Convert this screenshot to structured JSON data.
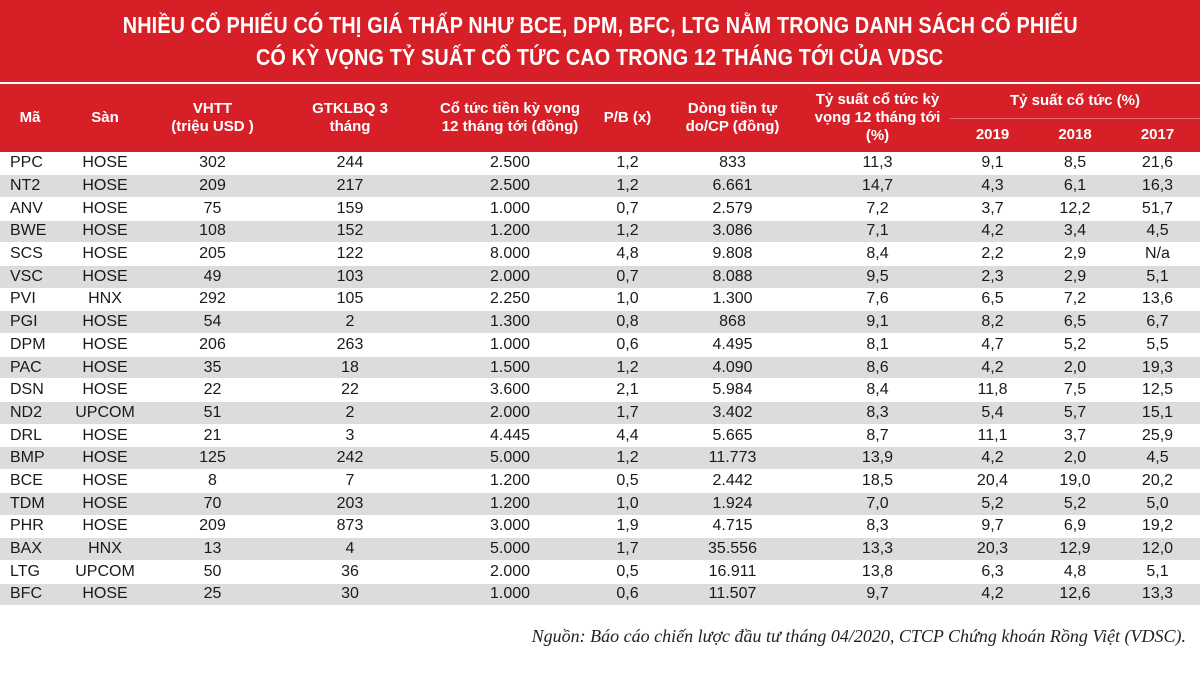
{
  "title": {
    "line1": "NHIỀU CỔ PHIẾU CÓ THỊ GIÁ THẤP NHƯ BCE, DPM, BFC, LTG NẰM TRONG DANH SÁCH CỔ PHIẾU",
    "line2": "CÓ KỲ VỌNG TỶ SUẤT CỔ TỨC CAO TRONG 12 THÁNG TỚI CỦA VDSC"
  },
  "header": {
    "ma": "Mã",
    "san": "Sàn",
    "vhtt_1": "VHTT",
    "vhtt_2": "(triệu USD )",
    "gtkl_1": "GTKLBQ 3",
    "gtkl_2": "tháng",
    "cotuc_1": "Cổ tức tiền kỳ vọng",
    "cotuc_2": "12 tháng tới (đồng)",
    "pb": "P/B (x)",
    "dongtien_1": "Dòng tiền tự",
    "dongtien_2": "do/CP (đồng)",
    "tysuat_kv_1": "Tỷ suất cổ tức kỳ",
    "tysuat_kv_2": "vọng 12 tháng tới",
    "tysuat_kv_3": "(%)",
    "tysuat_group": "Tỷ suất cổ tức (%)",
    "y2019": "2019",
    "y2018": "2018",
    "y2017": "2017"
  },
  "rows": [
    {
      "code": "PPC",
      "exchange": "HOSE",
      "vhtt": "302",
      "gtkl": "244",
      "dividend": "2.500",
      "pb": "1,2",
      "fcf": "833",
      "exp_yield": "11,3",
      "y2019": "9,1",
      "y2018": "8,5",
      "y2017": "21,6"
    },
    {
      "code": "NT2",
      "exchange": "HOSE",
      "vhtt": "209",
      "gtkl": "217",
      "dividend": "2.500",
      "pb": "1,2",
      "fcf": "6.661",
      "exp_yield": "14,7",
      "y2019": "4,3",
      "y2018": "6,1",
      "y2017": "16,3"
    },
    {
      "code": "ANV",
      "exchange": "HOSE",
      "vhtt": "75",
      "gtkl": "159",
      "dividend": "1.000",
      "pb": "0,7",
      "fcf": "2.579",
      "exp_yield": "7,2",
      "y2019": "3,7",
      "y2018": "12,2",
      "y2017": "51,7"
    },
    {
      "code": "BWE",
      "exchange": "HOSE",
      "vhtt": "108",
      "gtkl": "152",
      "dividend": "1.200",
      "pb": "1,2",
      "fcf": "3.086",
      "exp_yield": "7,1",
      "y2019": "4,2",
      "y2018": "3,4",
      "y2017": "4,5"
    },
    {
      "code": "SCS",
      "exchange": "HOSE",
      "vhtt": "205",
      "gtkl": "122",
      "dividend": "8.000",
      "pb": "4,8",
      "fcf": "9.808",
      "exp_yield": "8,4",
      "y2019": "2,2",
      "y2018": "2,9",
      "y2017": "N/a"
    },
    {
      "code": "VSC",
      "exchange": "HOSE",
      "vhtt": "49",
      "gtkl": "103",
      "dividend": "2.000",
      "pb": "0,7",
      "fcf": "8.088",
      "exp_yield": "9,5",
      "y2019": "2,3",
      "y2018": "2,9",
      "y2017": "5,1"
    },
    {
      "code": "PVI",
      "exchange": "HNX",
      "vhtt": "292",
      "gtkl": "105",
      "dividend": "2.250",
      "pb": "1,0",
      "fcf": "1.300",
      "exp_yield": "7,6",
      "y2019": "6,5",
      "y2018": "7,2",
      "y2017": "13,6"
    },
    {
      "code": "PGI",
      "exchange": "HOSE",
      "vhtt": "54",
      "gtkl": "2",
      "dividend": "1.300",
      "pb": "0,8",
      "fcf": "868",
      "exp_yield": "9,1",
      "y2019": "8,2",
      "y2018": "6,5",
      "y2017": "6,7"
    },
    {
      "code": "DPM",
      "exchange": "HOSE",
      "vhtt": "206",
      "gtkl": "263",
      "dividend": "1.000",
      "pb": "0,6",
      "fcf": "4.495",
      "exp_yield": "8,1",
      "y2019": "4,7",
      "y2018": "5,2",
      "y2017": "5,5"
    },
    {
      "code": "PAC",
      "exchange": "HOSE",
      "vhtt": "35",
      "gtkl": "18",
      "dividend": "1.500",
      "pb": "1,2",
      "fcf": "4.090",
      "exp_yield": "8,6",
      "y2019": "4,2",
      "y2018": "2,0",
      "y2017": "19,3"
    },
    {
      "code": "DSN",
      "exchange": "HOSE",
      "vhtt": "22",
      "gtkl": "22",
      "dividend": "3.600",
      "pb": "2,1",
      "fcf": "5.984",
      "exp_yield": "8,4",
      "y2019": "11,8",
      "y2018": "7,5",
      "y2017": "12,5"
    },
    {
      "code": "ND2",
      "exchange": "UPCOM",
      "vhtt": "51",
      "gtkl": "2",
      "dividend": "2.000",
      "pb": "1,7",
      "fcf": "3.402",
      "exp_yield": "8,3",
      "y2019": "5,4",
      "y2018": "5,7",
      "y2017": "15,1"
    },
    {
      "code": "DRL",
      "exchange": "HOSE",
      "vhtt": "21",
      "gtkl": "3",
      "dividend": "4.445",
      "pb": "4,4",
      "fcf": "5.665",
      "exp_yield": "8,7",
      "y2019": "11,1",
      "y2018": "3,7",
      "y2017": "25,9"
    },
    {
      "code": "BMP",
      "exchange": "HOSE",
      "vhtt": "125",
      "gtkl": "242",
      "dividend": "5.000",
      "pb": "1,2",
      "fcf": "11.773",
      "exp_yield": "13,9",
      "y2019": "4,2",
      "y2018": "2,0",
      "y2017": "4,5"
    },
    {
      "code": "BCE",
      "exchange": "HOSE",
      "vhtt": "8",
      "gtkl": "7",
      "dividend": "1.200",
      "pb": "0,5",
      "fcf": "2.442",
      "exp_yield": "18,5",
      "y2019": "20,4",
      "y2018": "19,0",
      "y2017": "20,2"
    },
    {
      "code": "TDM",
      "exchange": "HOSE",
      "vhtt": "70",
      "gtkl": "203",
      "dividend": "1.200",
      "pb": "1,0",
      "fcf": "1.924",
      "exp_yield": "7,0",
      "y2019": "5,2",
      "y2018": "5,2",
      "y2017": "5,0"
    },
    {
      "code": "PHR",
      "exchange": "HOSE",
      "vhtt": "209",
      "gtkl": "873",
      "dividend": "3.000",
      "pb": "1,9",
      "fcf": "4.715",
      "exp_yield": "8,3",
      "y2019": "9,7",
      "y2018": "6,9",
      "y2017": "19,2"
    },
    {
      "code": "BAX",
      "exchange": "HNX",
      "vhtt": "13",
      "gtkl": "4",
      "dividend": "5.000",
      "pb": "1,7",
      "fcf": "35.556",
      "exp_yield": "13,3",
      "y2019": "20,3",
      "y2018": "12,9",
      "y2017": "12,0"
    },
    {
      "code": "LTG",
      "exchange": "UPCOM",
      "vhtt": "50",
      "gtkl": "36",
      "dividend": "2.000",
      "pb": "0,5",
      "fcf": "16.911",
      "exp_yield": "13,8",
      "y2019": "6,3",
      "y2018": "4,8",
      "y2017": "5,1"
    },
    {
      "code": "BFC",
      "exchange": "HOSE",
      "vhtt": "25",
      "gtkl": "30",
      "dividend": "1.000",
      "pb": "0,6",
      "fcf": "11.507",
      "exp_yield": "9,7",
      "y2019": "4,2",
      "y2018": "12,6",
      "y2017": "13,3"
    }
  ],
  "source": "Nguồn: Báo cáo chiến lược đầu tư tháng 04/2020, CTCP Chứng khoán Rồng Việt (VDSC)."
}
